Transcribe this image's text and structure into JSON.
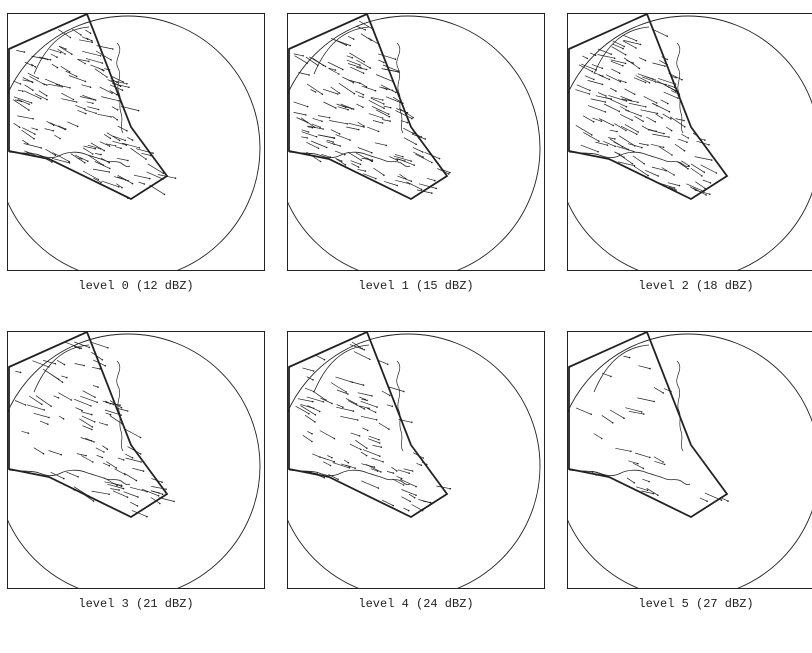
{
  "figure": {
    "panels": [
      {
        "caption": "level 0 (12 dBZ)",
        "vector_density": "dense"
      },
      {
        "caption": "level 1 (15 dBZ)",
        "vector_density": "dense"
      },
      {
        "caption": "level 2 (18 dBZ)",
        "vector_density": "dense"
      },
      {
        "caption": "level 3 (21 dBZ)",
        "vector_density": "medium"
      },
      {
        "caption": "level 4 (24 dBZ)",
        "vector_density": "medium"
      },
      {
        "caption": "level 5 (27 dBZ)",
        "vector_density": "sparse"
      }
    ],
    "colors": {
      "ink": "#222222",
      "background": "#ffffff"
    }
  }
}
